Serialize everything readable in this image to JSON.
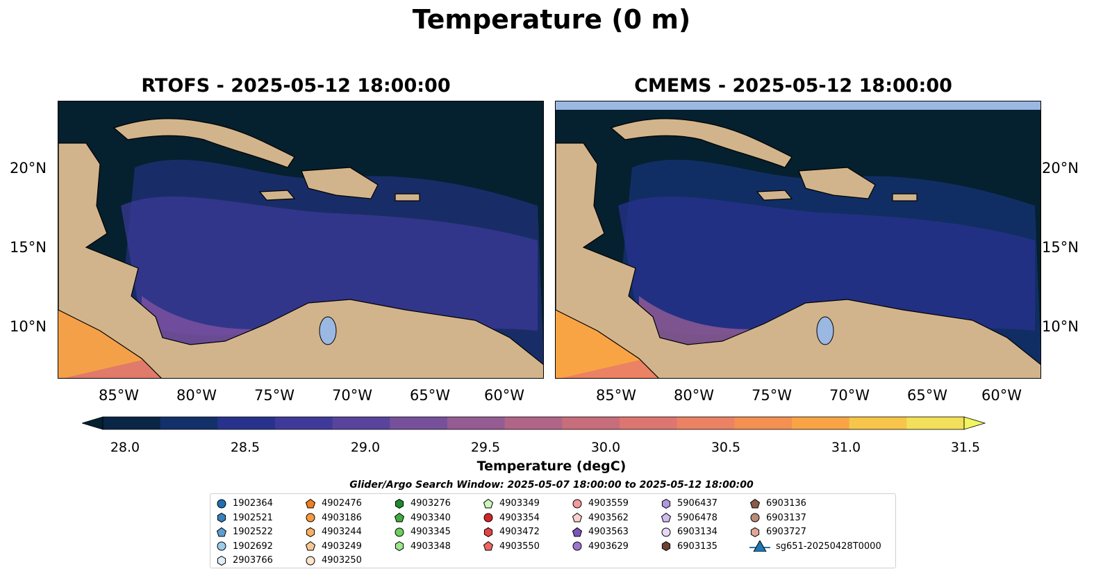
{
  "title": "Temperature (0 m)",
  "panels": [
    {
      "title": "RTOFS - 2025-05-12 18:00:00"
    },
    {
      "title": "CMEMS - 2025-05-12 18:00:00"
    }
  ],
  "lat_labels": [
    "20°N",
    "15°N",
    "10°N"
  ],
  "lon_labels": [
    "85°W",
    "80°W",
    "75°W",
    "70°W",
    "65°W",
    "60°W"
  ],
  "colorbar": {
    "label": "Temperature (degC)",
    "ticks": [
      "28.0",
      "28.5",
      "29.0",
      "29.5",
      "30.0",
      "30.5",
      "31.0",
      "31.5"
    ],
    "colors": [
      "#0a2545",
      "#13306a",
      "#28328d",
      "#3f3a9a",
      "#58449d",
      "#77509b",
      "#955c93",
      "#b06588",
      "#c86d7b",
      "#dd7670",
      "#eb8263",
      "#f49052",
      "#f8a445",
      "#f7c54a",
      "#f2df5a"
    ],
    "underflow_color": "#05202f",
    "overflow_color": "#f0f560"
  },
  "search_window": "Glider/Argo Search Window: 2025-05-07 18:00:00 to 2025-05-12 18:00:00",
  "legend": {
    "columns": [
      [
        {
          "label": "1902364",
          "shape": "circle",
          "color": "#1f6fb2"
        },
        {
          "label": "1902521",
          "shape": "hexagon",
          "color": "#3a80bf"
        },
        {
          "label": "1902522",
          "shape": "pentagon",
          "color": "#5d9ed3"
        },
        {
          "label": "1902692",
          "shape": "circle",
          "color": "#9ecbe9"
        },
        {
          "label": "2903766",
          "shape": "hexagon",
          "color": "#ddeef8"
        }
      ],
      [
        {
          "label": "4902476",
          "shape": "pentagon",
          "color": "#f07f1e"
        },
        {
          "label": "4903186",
          "shape": "circle",
          "color": "#f89a3e"
        },
        {
          "label": "4903244",
          "shape": "hexagon",
          "color": "#f9b064"
        },
        {
          "label": "4903249",
          "shape": "pentagon",
          "color": "#f7c895"
        },
        {
          "label": "4903250",
          "shape": "circle",
          "color": "#fde3c7"
        }
      ],
      [
        {
          "label": "4903276",
          "shape": "hexagon",
          "color": "#1d8a2e"
        },
        {
          "label": "4903340",
          "shape": "pentagon",
          "color": "#3fac3f"
        },
        {
          "label": "4903345",
          "shape": "circle",
          "color": "#6ccf5e"
        },
        {
          "label": "4903348",
          "shape": "hexagon",
          "color": "#9be58c"
        }
      ],
      [
        {
          "label": "4903349",
          "shape": "pentagon",
          "color": "#ccf5c0"
        },
        {
          "label": "4903354",
          "shape": "circle",
          "color": "#d42525"
        },
        {
          "label": "4903472",
          "shape": "hexagon",
          "color": "#e24444"
        },
        {
          "label": "4903550",
          "shape": "pentagon",
          "color": "#f06464"
        }
      ],
      [
        {
          "label": "4903559",
          "shape": "circle",
          "color": "#f49a9a"
        },
        {
          "label": "4903562",
          "shape": "pentagon",
          "color": "#fbd0cf"
        },
        {
          "label": "4903563",
          "shape": "pentagon",
          "color": "#7d55b7"
        },
        {
          "label": "4903629",
          "shape": "circle",
          "color": "#9b78cc"
        }
      ],
      [
        {
          "label": "5906437",
          "shape": "hexagon",
          "color": "#b298dc"
        },
        {
          "label": "5906478",
          "shape": "pentagon",
          "color": "#cfbcec"
        },
        {
          "label": "6903134",
          "shape": "circle",
          "color": "#e6d8f7"
        },
        {
          "label": "6903135",
          "shape": "hexagon",
          "color": "#6b4233"
        }
      ],
      [
        {
          "label": "6903136",
          "shape": "pentagon",
          "color": "#8c5a48"
        },
        {
          "label": "6903137",
          "shape": "circle",
          "color": "#b98a78"
        },
        {
          "label": "6903727",
          "shape": "hexagon",
          "color": "#e2a694"
        },
        {
          "label": "sg651-20250428T0000",
          "shape": "triangle",
          "color": "#1f77b4"
        }
      ]
    ]
  }
}
